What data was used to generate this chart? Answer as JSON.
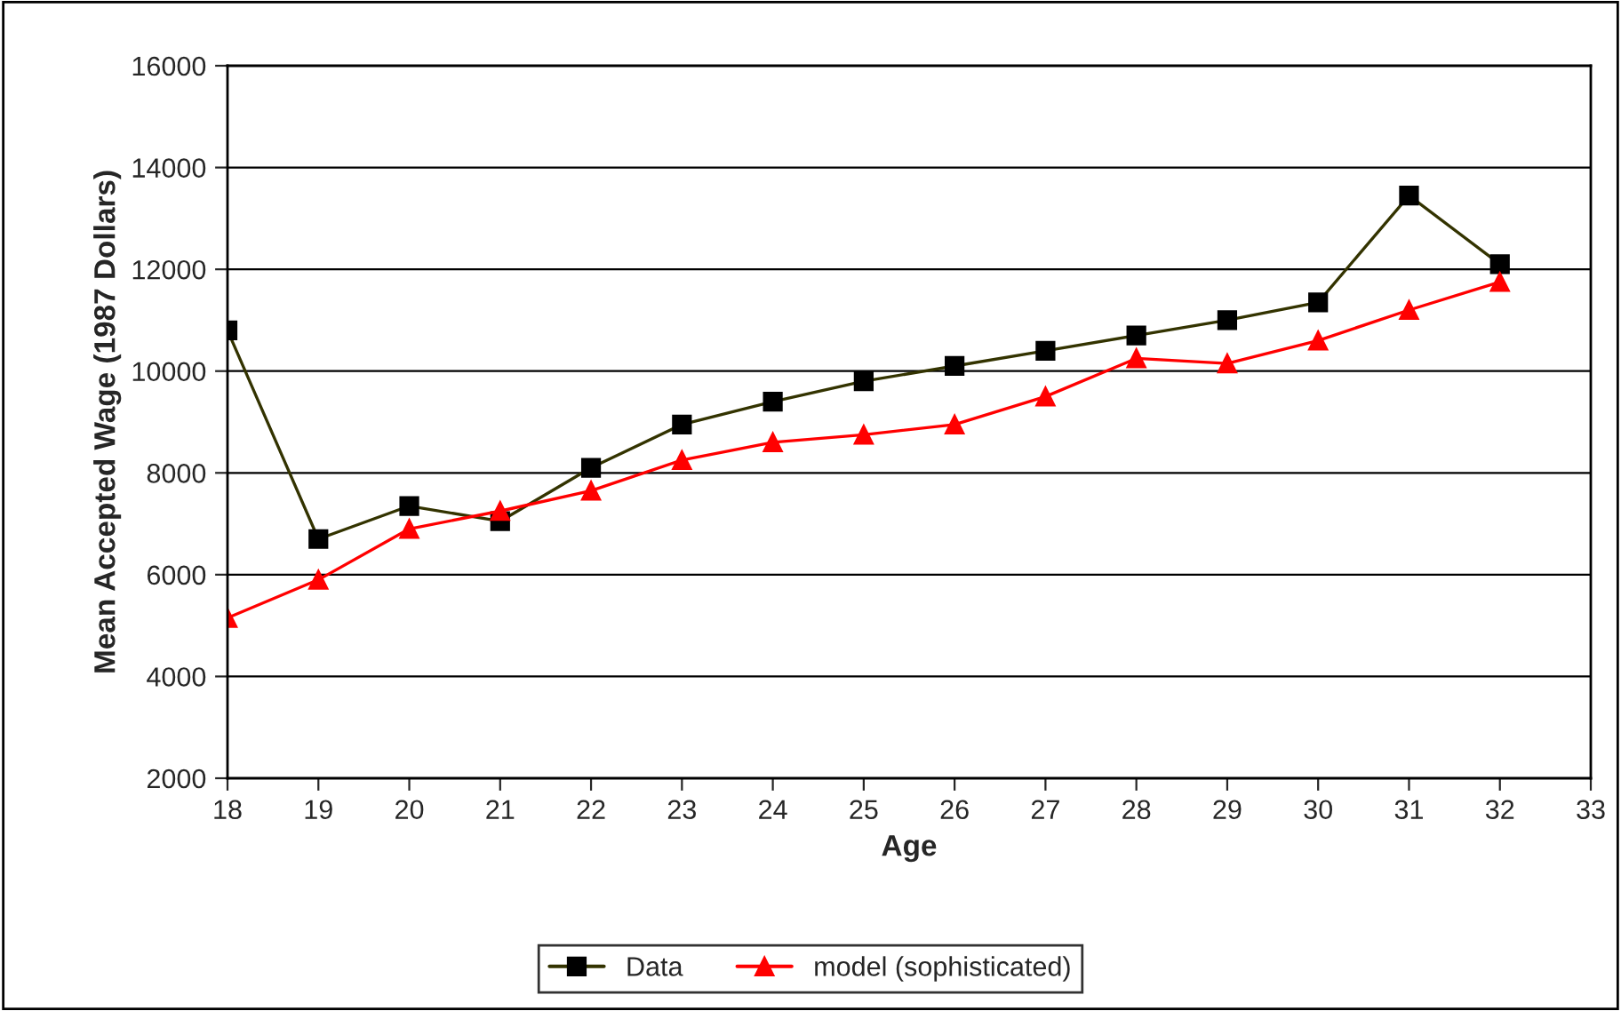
{
  "chart_data": {
    "type": "line",
    "xlabel": "Age",
    "ylabel": "Mean Accepted Wage (1987 Dollars)",
    "x": [
      18,
      19,
      20,
      21,
      22,
      23,
      24,
      25,
      26,
      27,
      28,
      29,
      30,
      31,
      32
    ],
    "series": [
      {
        "name": "Data",
        "color": "#333300",
        "marker": "square",
        "values": [
          10800,
          6700,
          7350,
          7050,
          8100,
          8950,
          9400,
          9800,
          10100,
          10400,
          10700,
          11000,
          11350,
          13450,
          12100
        ]
      },
      {
        "name": "model (sophisticated)",
        "color": "#ff0000",
        "marker": "triangle",
        "values": [
          5150,
          5900,
          6900,
          7250,
          7650,
          8250,
          8600,
          8750,
          8950,
          9500,
          10250,
          10150,
          10600,
          11200,
          11750
        ]
      }
    ],
    "xlim": [
      18,
      33
    ],
    "xticks": [
      18,
      19,
      20,
      21,
      22,
      23,
      24,
      25,
      26,
      27,
      28,
      29,
      30,
      31,
      32,
      33
    ],
    "ylim": [
      2000,
      16000
    ],
    "yticks": [
      2000,
      4000,
      6000,
      8000,
      10000,
      12000,
      14000,
      16000
    ],
    "grid": "y",
    "legend": "bottom",
    "line_style": "solid"
  }
}
